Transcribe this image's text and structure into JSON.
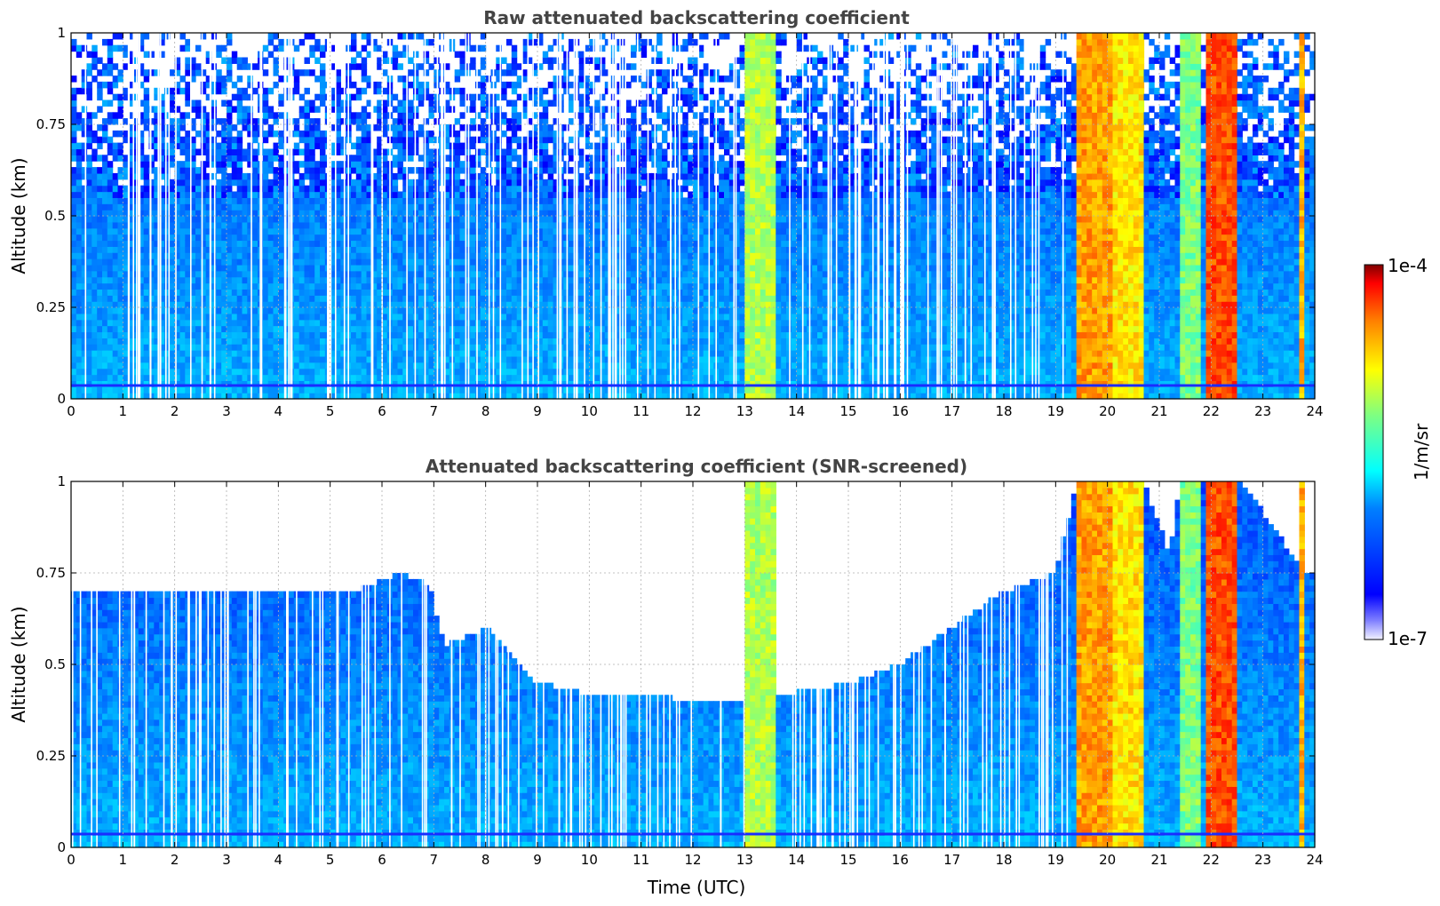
{
  "chart_data": [
    {
      "type": "heatmap",
      "title": "Raw attenuated backscattering coefficient",
      "xlabel": "",
      "ylabel": "Altitude (km)",
      "xlim": [
        0,
        24
      ],
      "ylim": [
        0,
        1
      ],
      "x_ticks": [
        "0",
        "1",
        "2",
        "3",
        "4",
        "5",
        "6",
        "7",
        "8",
        "9",
        "10",
        "11",
        "12",
        "13",
        "14",
        "15",
        "16",
        "17",
        "18",
        "19",
        "20",
        "21",
        "22",
        "23",
        "24"
      ],
      "y_ticks": [
        "0",
        "0.25",
        "0.5",
        "0.75",
        "1"
      ],
      "grid": true,
      "screened": false,
      "colormap": "jet",
      "color_scale": "log",
      "zlim": [
        "1e-7",
        "1e-4"
      ],
      "zlabel": "1/m/sr",
      "bands": [
        {
          "x": [
            13.0,
            13.6
          ],
          "level": 0.55
        },
        {
          "x": [
            19.4,
            20.1
          ],
          "level": 0.72
        },
        {
          "x": [
            20.1,
            20.7
          ],
          "level": 0.65
        },
        {
          "x": [
            21.4,
            21.8
          ],
          "level": 0.5
        },
        {
          "x": [
            21.9,
            22.5
          ],
          "level": 0.8
        },
        {
          "x": [
            23.75,
            23.8
          ],
          "level": 0.7
        }
      ]
    },
    {
      "type": "heatmap",
      "title": "Attenuated backscattering coefficient (SNR-screened)",
      "xlabel": "Time (UTC)",
      "ylabel": "Altitude (km)",
      "xlim": [
        0,
        24
      ],
      "ylim": [
        0,
        1
      ],
      "x_ticks": [
        "0",
        "1",
        "2",
        "3",
        "4",
        "5",
        "6",
        "7",
        "8",
        "9",
        "10",
        "11",
        "12",
        "13",
        "14",
        "15",
        "16",
        "17",
        "18",
        "19",
        "20",
        "21",
        "22",
        "23",
        "24"
      ],
      "y_ticks": [
        "0",
        "0.25",
        "0.5",
        "0.75",
        "1"
      ],
      "grid": true,
      "screened": true,
      "colormap": "jet",
      "color_scale": "log",
      "zlim": [
        "1e-7",
        "1e-4"
      ],
      "zlabel": "1/m/sr",
      "signal_top_km": [
        [
          0,
          0.7
        ],
        [
          5.5,
          0.7
        ],
        [
          6.3,
          0.75
        ],
        [
          6.9,
          0.72
        ],
        [
          7.2,
          0.55
        ],
        [
          8,
          0.6
        ],
        [
          9,
          0.45
        ],
        [
          10,
          0.42
        ],
        [
          11,
          0.42
        ],
        [
          12,
          0.4
        ],
        [
          12.9,
          0.4
        ],
        [
          13.8,
          0.42
        ],
        [
          15,
          0.45
        ],
        [
          16,
          0.5
        ],
        [
          17,
          0.6
        ],
        [
          18,
          0.7
        ],
        [
          19,
          0.75
        ],
        [
          19.4,
          1.0
        ],
        [
          20.7,
          1.0
        ],
        [
          21.2,
          0.8
        ],
        [
          21.4,
          1.0
        ],
        [
          22.6,
          1.0
        ],
        [
          23.8,
          0.75
        ],
        [
          24,
          0.75
        ]
      ],
      "bands": [
        {
          "x": [
            13.0,
            13.6
          ],
          "level": 0.55
        },
        {
          "x": [
            19.4,
            20.1
          ],
          "level": 0.72
        },
        {
          "x": [
            20.1,
            20.7
          ],
          "level": 0.65
        },
        {
          "x": [
            21.4,
            21.8
          ],
          "level": 0.5
        },
        {
          "x": [
            21.9,
            22.5
          ],
          "level": 0.8
        },
        {
          "x": [
            23.75,
            23.8
          ],
          "level": 0.7
        }
      ]
    }
  ],
  "colorbar": {
    "top_label": "1e-4",
    "bottom_label": "1e-7",
    "unit_label": "1/m/sr"
  }
}
